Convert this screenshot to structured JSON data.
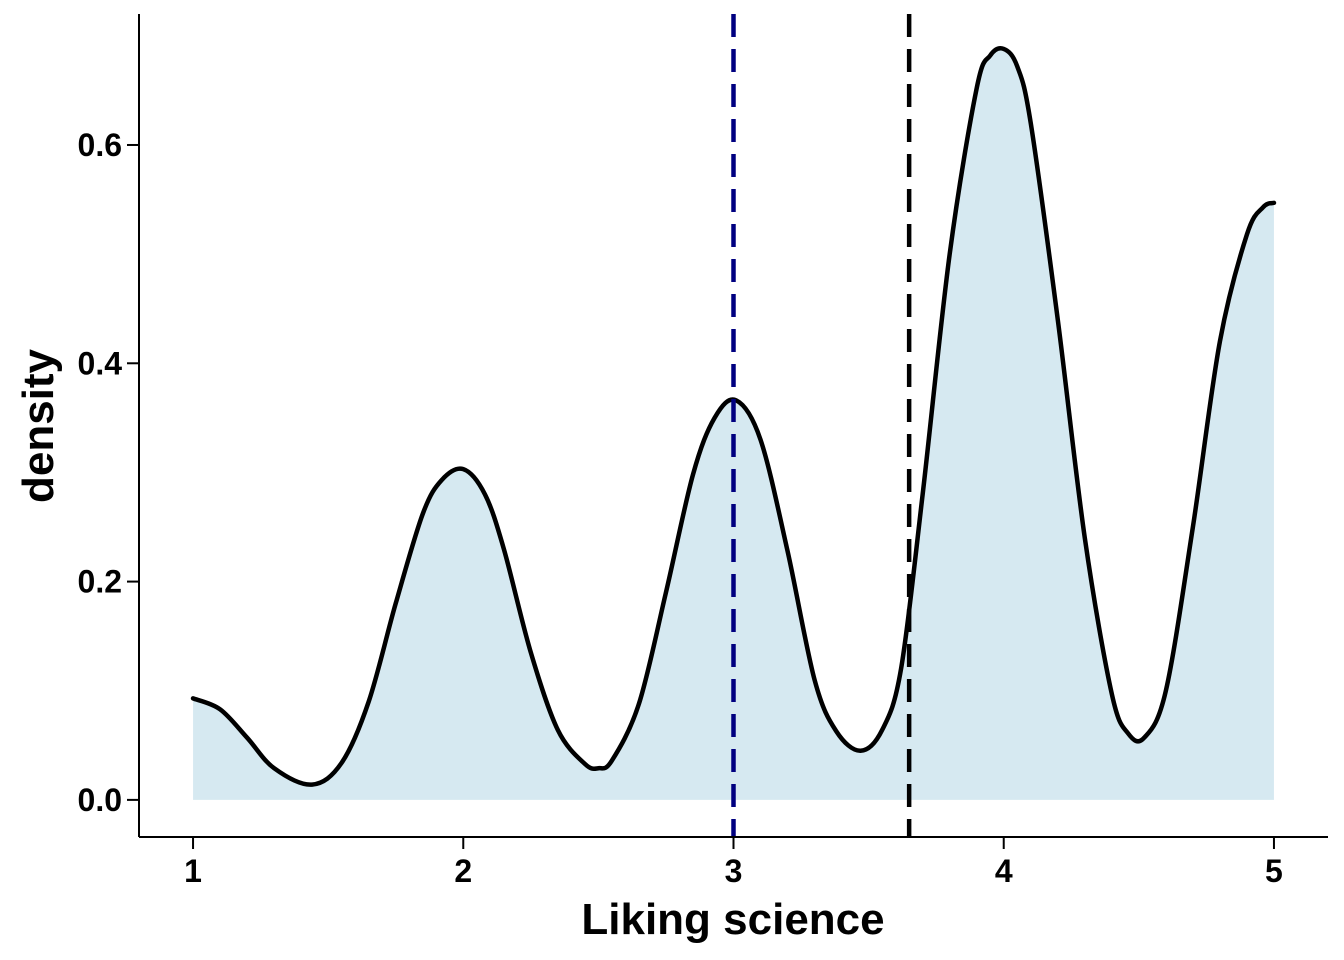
{
  "chart_data": {
    "type": "area",
    "title": "",
    "xlabel": "Liking science",
    "ylabel": "density",
    "xlim": [
      0.8,
      5.2
    ],
    "ylim": [
      -0.034,
      0.72
    ],
    "x_ticks": [
      1,
      2,
      3,
      4,
      5
    ],
    "x_tick_labels": [
      "1",
      "2",
      "3",
      "4",
      "5"
    ],
    "y_ticks": [
      0.0,
      0.2,
      0.4,
      0.6
    ],
    "y_tick_labels": [
      "0.0",
      "0.2",
      "0.4",
      "0.6"
    ],
    "grid": false,
    "legend": "none",
    "series": [
      {
        "x": [
          1.0,
          1.1,
          1.2,
          1.3,
          1.44,
          1.55,
          1.65,
          1.75,
          1.85,
          1.92,
          2.0,
          2.08,
          2.15,
          2.25,
          2.35,
          2.45,
          2.5,
          2.55,
          2.65,
          2.75,
          2.85,
          2.93,
          3.01,
          3.1,
          3.2,
          3.3,
          3.38,
          3.47,
          3.55,
          3.62,
          3.7,
          3.8,
          3.9,
          3.95,
          4.0,
          4.05,
          4.1,
          4.2,
          4.3,
          4.4,
          4.46,
          4.52,
          4.6,
          4.7,
          4.8,
          4.9,
          4.96,
          5.0
        ],
        "y": [
          0.093,
          0.083,
          0.057,
          0.029,
          0.014,
          0.034,
          0.09,
          0.18,
          0.262,
          0.293,
          0.303,
          0.28,
          0.23,
          0.135,
          0.064,
          0.033,
          0.029,
          0.036,
          0.088,
          0.19,
          0.298,
          0.35,
          0.366,
          0.33,
          0.228,
          0.11,
          0.063,
          0.045,
          0.064,
          0.12,
          0.28,
          0.5,
          0.652,
          0.682,
          0.688,
          0.672,
          0.62,
          0.44,
          0.24,
          0.097,
          0.061,
          0.057,
          0.1,
          0.25,
          0.42,
          0.518,
          0.543,
          0.547
        ]
      }
    ],
    "vlines": [
      {
        "x": 3.0,
        "color": "#000080",
        "style": "dashed"
      },
      {
        "x": 3.65,
        "color": "#000000",
        "style": "dashed"
      }
    ],
    "colors": {
      "fill": "#d6e9f1",
      "curve": "#000000"
    }
  }
}
